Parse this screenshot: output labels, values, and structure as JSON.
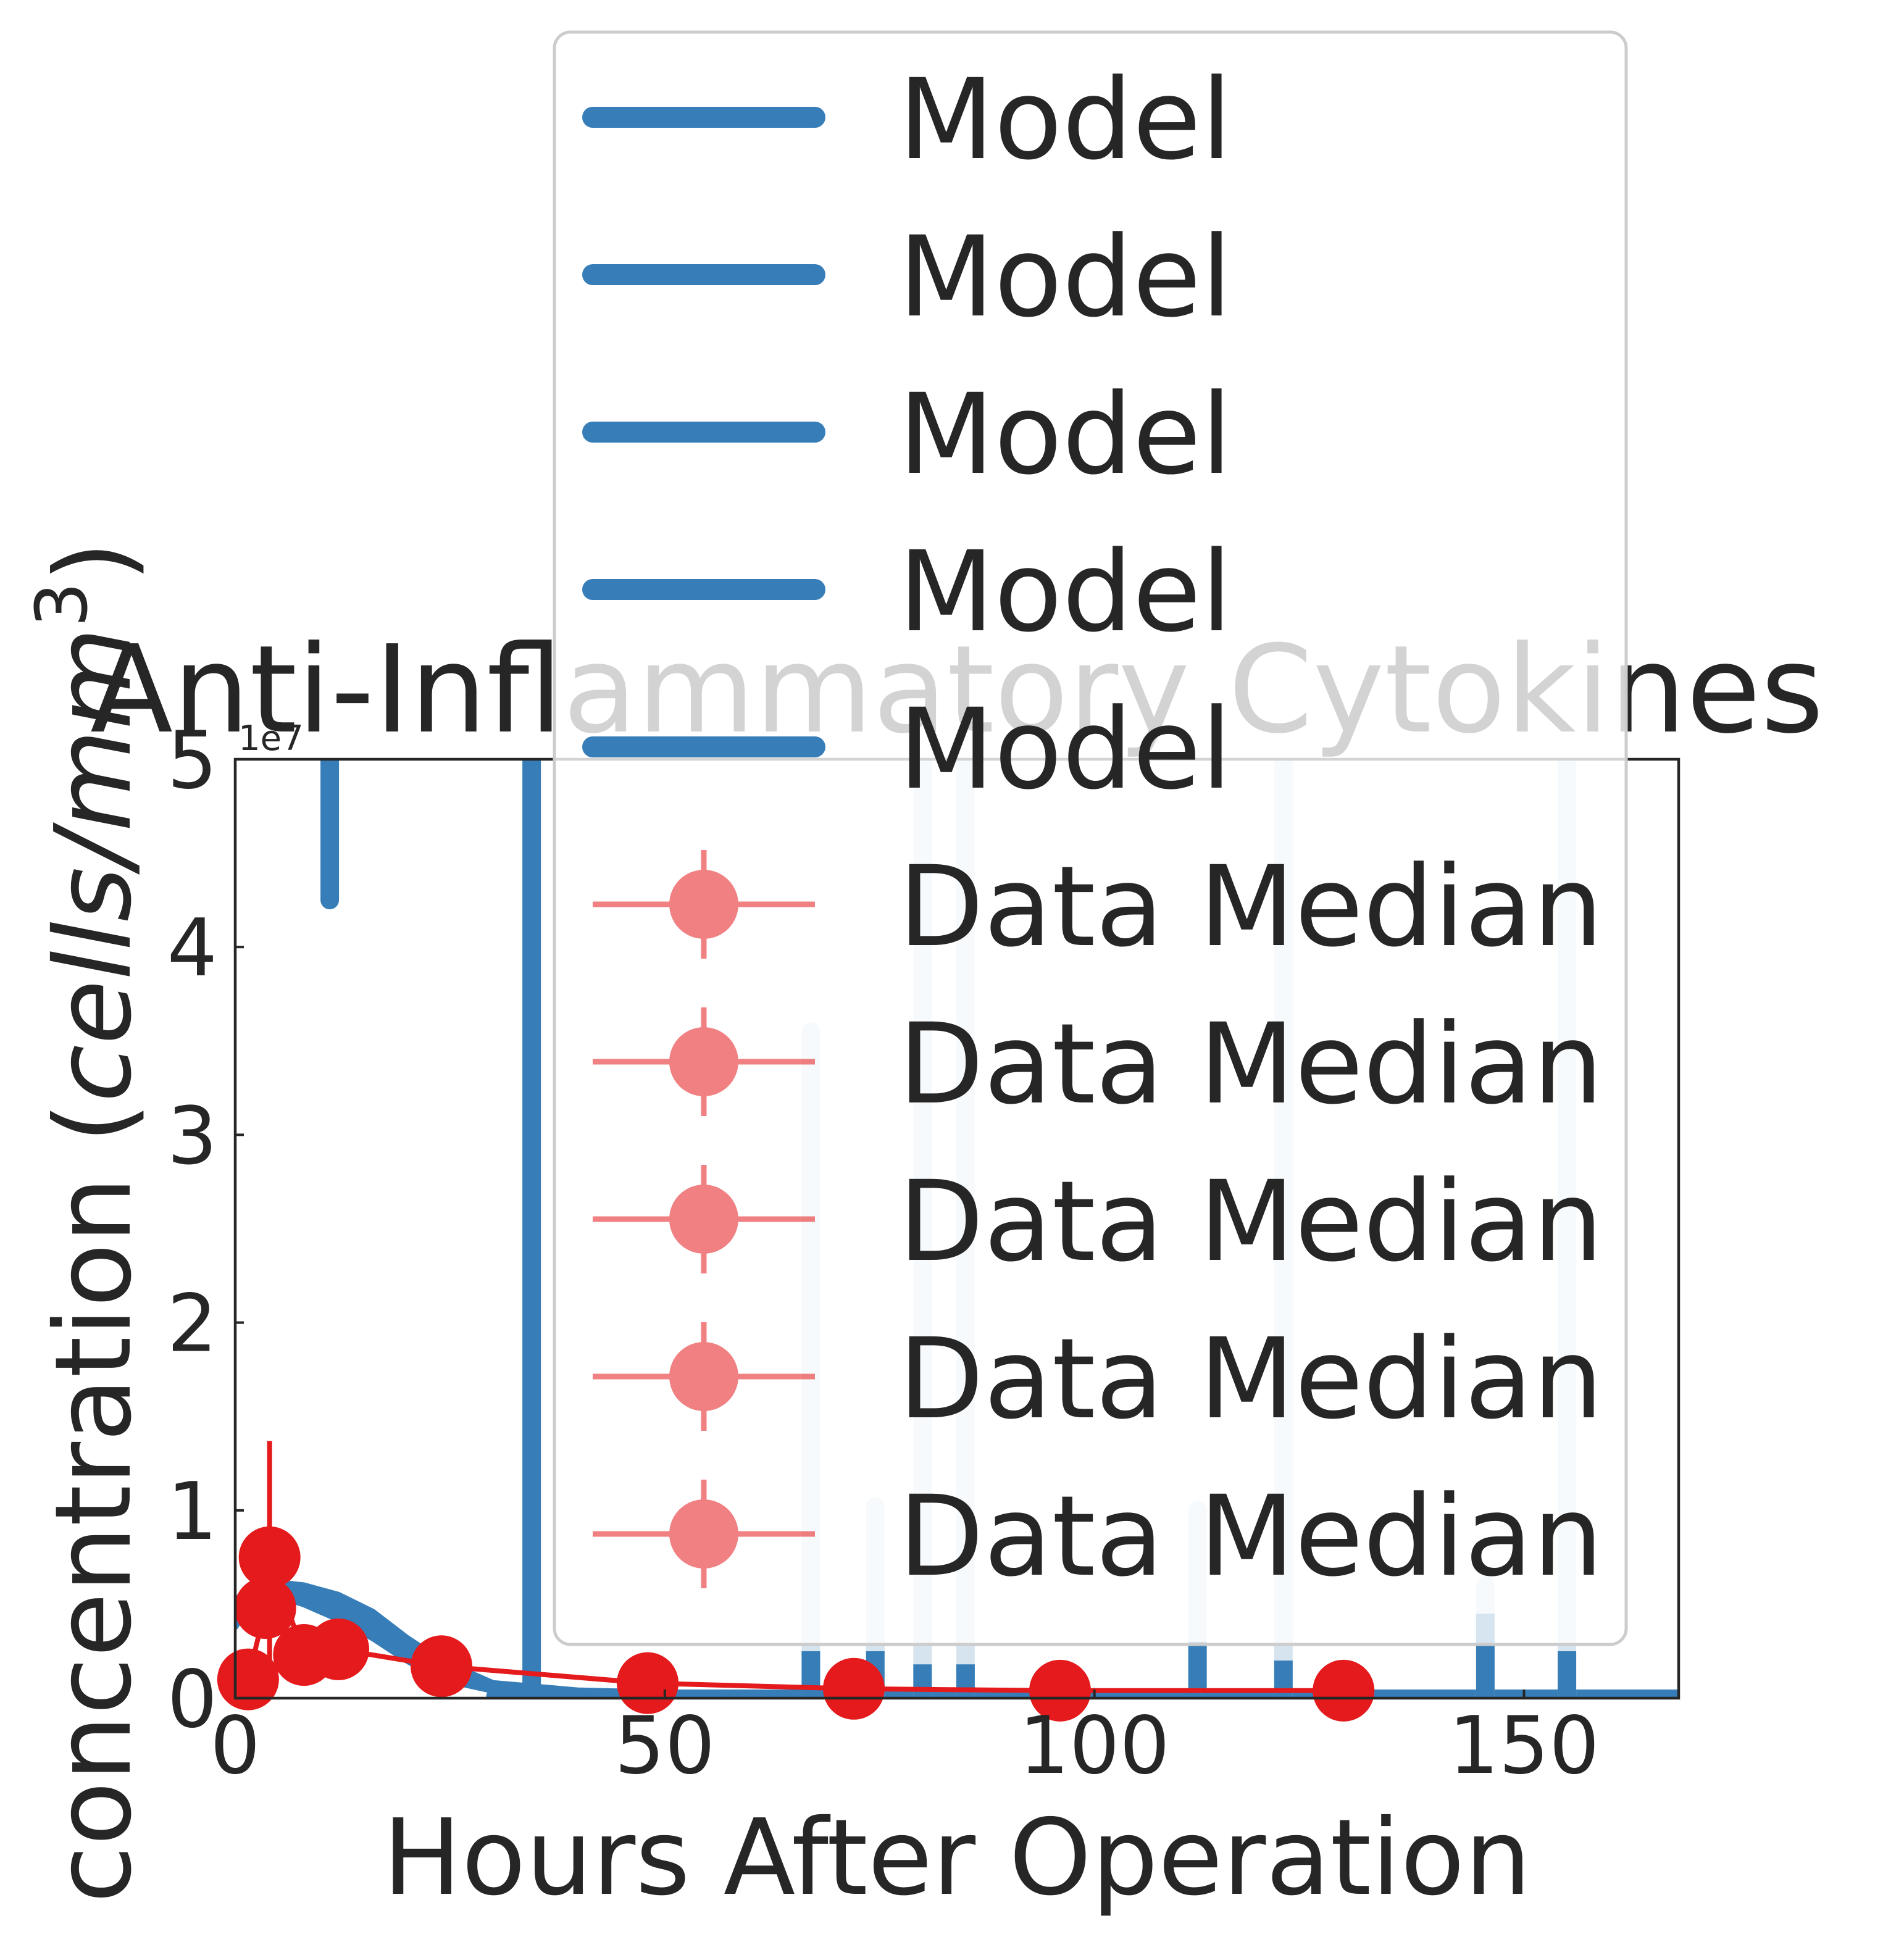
{
  "chart_data": {
    "type": "line",
    "title": "Anti-Inflammatory Cytokines",
    "xlabel": "Hours After Operation",
    "ylabel_prefix": "concentration (",
    "ylabel_unit": "cells/mm",
    "ylabel_exp": "3",
    "ylabel_suffix": ")",
    "offset_text": "1e7",
    "xlim": [
      0,
      168
    ],
    "ylim": [
      0,
      5
    ],
    "y_scale_factor": 10000000,
    "xticks": [
      0,
      50,
      100,
      150
    ],
    "yticks": [
      0,
      1,
      2,
      3,
      4,
      5
    ],
    "grid": false,
    "legend_position": "upper center",
    "colors": {
      "model": "#377eb8",
      "model_light": "#d6e4f0",
      "data": "#e41a1c"
    },
    "legend": [
      "Model",
      "Model",
      "Model",
      "Model",
      "Model",
      "Data Median",
      "Data Median",
      "Data Median",
      "Data Median",
      "Data Median"
    ],
    "model_band": {
      "x": [
        0,
        2,
        4,
        6,
        8,
        12,
        16,
        20,
        24,
        30,
        40,
        50,
        60,
        80,
        120,
        168
      ],
      "lo": [
        0.38,
        0.52,
        0.55,
        0.53,
        0.5,
        0.42,
        0.32,
        0.2,
        0.1,
        0.04,
        0.02,
        0.01,
        0.005,
        0.002,
        0.0,
        0.0
      ],
      "hi": [
        0.52,
        0.6,
        0.62,
        0.61,
        0.6,
        0.55,
        0.46,
        0.32,
        0.2,
        0.08,
        0.04,
        0.03,
        0.02,
        0.01,
        0.005,
        0.0
      ]
    },
    "model_spikes": [
      {
        "x": 11,
        "y0": 4.25,
        "y1": 5.0,
        "light": false
      },
      {
        "x": 34.5,
        "y0": 0.0,
        "y1": 5.0,
        "light": false
      },
      {
        "x": 67,
        "y0": 0.0,
        "y1": 3.55,
        "light": true
      },
      {
        "x": 74.5,
        "y0": 0.0,
        "y1": 1.02,
        "light": true
      },
      {
        "x": 80,
        "y0": 0.0,
        "y1": 5.0,
        "light": true
      },
      {
        "x": 85,
        "y0": 0.0,
        "y1": 5.0,
        "light": true
      },
      {
        "x": 112,
        "y0": 0.3,
        "y1": 1.0,
        "light": true
      },
      {
        "x": 122,
        "y0": 0.0,
        "y1": 5.0,
        "light": true
      },
      {
        "x": 145.5,
        "y0": 0.0,
        "y1": 0.6,
        "light": true
      },
      {
        "x": 155,
        "y0": 0.0,
        "y1": 5.0,
        "light": true
      }
    ],
    "model_spike_bases": [
      {
        "x": 67,
        "y1": 0.25
      },
      {
        "x": 74.5,
        "y1": 0.25
      },
      {
        "x": 80,
        "y1": 0.18
      },
      {
        "x": 85,
        "y1": 0.18
      },
      {
        "x": 112,
        "y1": 0.3
      },
      {
        "x": 122,
        "y1": 0.2
      },
      {
        "x": 145.5,
        "y1": 0.45
      },
      {
        "x": 155,
        "y1": 0.25
      }
    ],
    "series": [
      {
        "name": "Data Median",
        "x": [
          1.5,
          4,
          3.5,
          8,
          12,
          24,
          48,
          72,
          96,
          129
        ],
        "y": [
          0.1,
          0.75,
          0.48,
          0.23,
          0.26,
          0.17,
          0.08,
          0.05,
          0.04,
          0.04
        ],
        "err": [
          0.0,
          0.62,
          0.0,
          0.0,
          0.0,
          0.0,
          0.0,
          0.0,
          0.0,
          0.0
        ]
      }
    ]
  }
}
